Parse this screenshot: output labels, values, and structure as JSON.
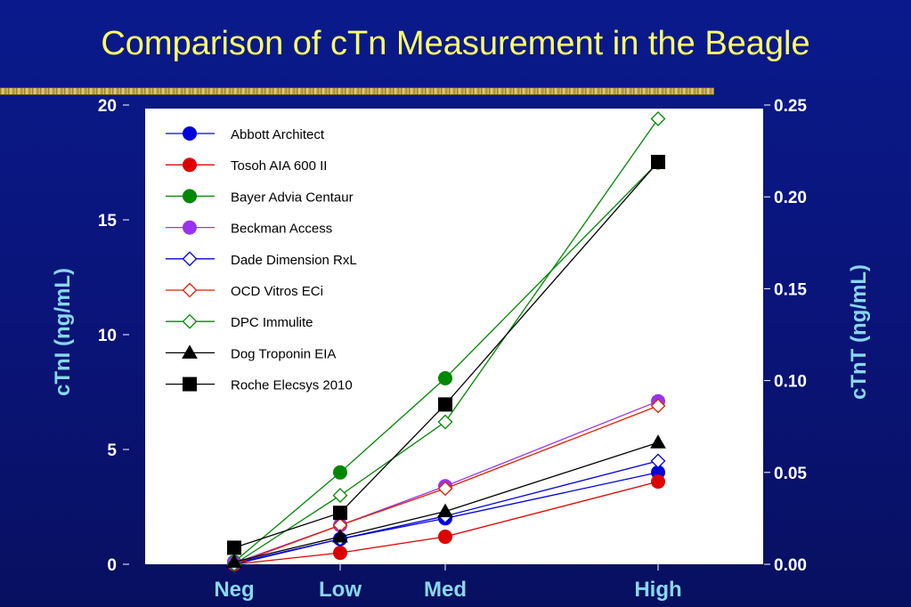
{
  "slide": {
    "title": "Comparison of cTn Measurement  in the Beagle"
  },
  "chart_data": {
    "type": "line",
    "title": "Comparison of cTn Measurement  in the Beagle",
    "categories": [
      "Neg",
      "Low",
      "Med",
      "High"
    ],
    "x": [
      0,
      1,
      2,
      4
    ],
    "ylabel": "cTnI (ng/mL)",
    "y2label": "cTnT (ng/mL)",
    "ylim": [
      0,
      20
    ],
    "y2lim": [
      0,
      0.25
    ],
    "yticks": [
      "0",
      "5",
      "10",
      "15",
      "20"
    ],
    "y2ticks": [
      "0.00",
      "0.05",
      "0.10",
      "0.15",
      "0.20",
      "0.25"
    ],
    "legend_placement": "top-left",
    "grid": false,
    "series": [
      {
        "name": "Abbott Architect",
        "axis": "left",
        "color": "#0000dd",
        "marker": "circle-filled",
        "values": [
          0.05,
          1.1,
          2.0,
          4.0
        ]
      },
      {
        "name": "Tosoh AIA 600 II",
        "axis": "left",
        "color": "#dd0000",
        "marker": "circle-filled",
        "values": [
          0.0,
          0.5,
          1.2,
          3.6
        ]
      },
      {
        "name": "Bayer Advia Centaur",
        "axis": "left",
        "color": "#008800",
        "marker": "circle-filled",
        "values": [
          0.1,
          4.0,
          8.1,
          17.5
        ]
      },
      {
        "name": "Beckman Access",
        "axis": "left",
        "color": "#9933ee",
        "marker": "circle-filled",
        "values": [
          0.05,
          1.7,
          3.4,
          7.1
        ]
      },
      {
        "name": "Dade Dimension RxL",
        "axis": "left",
        "color": "#0000dd",
        "marker": "diamond-open",
        "values": [
          0.0,
          1.1,
          2.1,
          4.5
        ]
      },
      {
        "name": "OCD Vitros ECi",
        "axis": "left",
        "color": "#dd2200",
        "marker": "diamond-open",
        "values": [
          0.0,
          1.7,
          3.3,
          6.9
        ]
      },
      {
        "name": "DPC Immulite",
        "axis": "left",
        "color": "#008800",
        "marker": "diamond-open",
        "values": [
          0.0,
          3.0,
          6.2,
          19.4
        ]
      },
      {
        "name": "Dog Troponin EIA",
        "axis": "left",
        "color": "#000000",
        "marker": "triangle-filled",
        "values": [
          0.1,
          1.2,
          2.3,
          5.3
        ]
      },
      {
        "name": "Roche Elecsys 2010",
        "axis": "right",
        "color": "#000000",
        "marker": "square-filled",
        "values": [
          0.009,
          0.028,
          0.087,
          0.219
        ]
      }
    ]
  }
}
